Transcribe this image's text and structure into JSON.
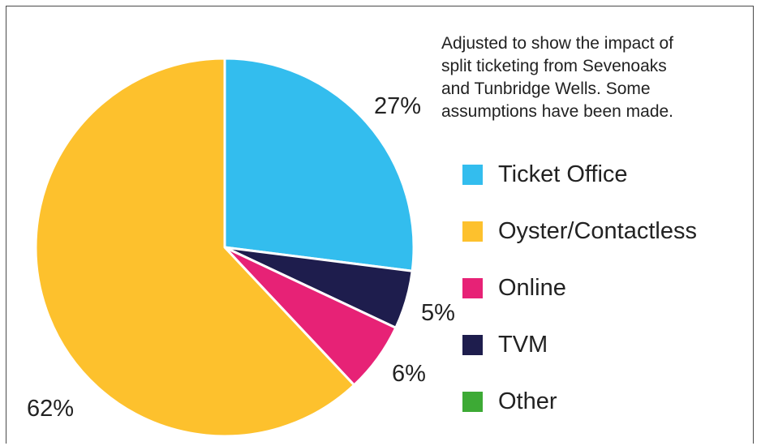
{
  "chart_data": {
    "type": "pie",
    "title": "",
    "annotation": "Adjusted to show the impact of\nsplit ticketing from Sevenoaks\nand Tunbridge Wells. Some\nassumptions have been made.",
    "slices": [
      {
        "label": "Ticket Office",
        "value": 27,
        "value_label": "27%",
        "color": "#33bdee"
      },
      {
        "label": "TVM",
        "value": 5,
        "value_label": "5%",
        "color": "#1e1d4d"
      },
      {
        "label": "Online",
        "value": 6,
        "value_label": "6%",
        "color": "#e72276"
      },
      {
        "label": "Oyster/Contactless",
        "value": 62,
        "value_label": "62%",
        "color": "#fdc12d"
      }
    ],
    "legend": [
      {
        "label": "Ticket Office",
        "color": "#33bdee"
      },
      {
        "label": "Oyster/Contactless",
        "color": "#fdc12d"
      },
      {
        "label": "Online",
        "color": "#e72276"
      },
      {
        "label": "TVM",
        "color": "#1e1d4d"
      },
      {
        "label": "Other",
        "color": "#3daa35"
      }
    ],
    "start": "12 o'clock",
    "direction": "clockwise",
    "legend_position": "right"
  }
}
